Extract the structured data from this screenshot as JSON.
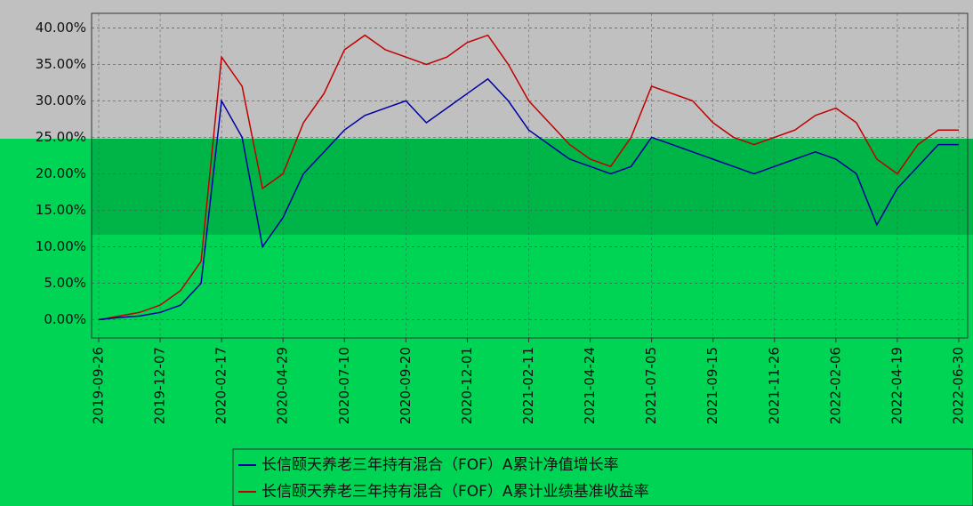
{
  "chart_data": {
    "type": "line",
    "categories": [
      "2019-09-26",
      null,
      null,
      "2019-12-07",
      null,
      null,
      "2020-02-17",
      null,
      null,
      "2020-04-29",
      null,
      null,
      "2020-07-10",
      null,
      null,
      "2020-09-20",
      null,
      null,
      "2020-12-01",
      null,
      null,
      "2021-02-11",
      null,
      null,
      "2021-04-24",
      null,
      null,
      "2021-07-05",
      null,
      null,
      "2021-09-15",
      null,
      null,
      "2021-11-26",
      null,
      null,
      "2022-02-06",
      null,
      null,
      "2022-04-19",
      null,
      null,
      "2022-06-30"
    ],
    "series": [
      {
        "name": "长信颐天养老三年持有混合（FOF）A累计净值增长率",
        "color": "#0000a0",
        "values": [
          0,
          0.3,
          0.5,
          1,
          2,
          5,
          30,
          25,
          10,
          14,
          20,
          23,
          26,
          28,
          29,
          30,
          27,
          29,
          31,
          33,
          30,
          26,
          24,
          22,
          21,
          20,
          21,
          25,
          24,
          23,
          22,
          21,
          20,
          21,
          22,
          23,
          22,
          20,
          13,
          18,
          21,
          24,
          24
        ]
      },
      {
        "name": "长信颐天养老三年持有混合（FOF）A累计业绩基准收益率",
        "color": "#c00000",
        "values": [
          0,
          0.5,
          1,
          2,
          4,
          8,
          36,
          32,
          18,
          20,
          27,
          31,
          37,
          39,
          37,
          36,
          35,
          36,
          38,
          39,
          35,
          30,
          27,
          24,
          22,
          21,
          25,
          32,
          31,
          30,
          27,
          25,
          24,
          25,
          26,
          28,
          29,
          27,
          22,
          20,
          24,
          26,
          26
        ]
      }
    ],
    "ylim": [
      -2.5,
      42
    ],
    "yticks": [
      {
        "value": 0,
        "label": "0.00%"
      },
      {
        "value": 5,
        "label": "5.00%"
      },
      {
        "value": 10,
        "label": "10.00%"
      },
      {
        "value": 15,
        "label": "15.00%"
      },
      {
        "value": 20,
        "label": "20.00%"
      },
      {
        "value": 25,
        "label": "25.00%"
      },
      {
        "value": 30,
        "label": "30.00%"
      },
      {
        "value": 35,
        "label": "35.00%"
      },
      {
        "value": 40,
        "label": "40.00%"
      }
    ],
    "grid": true
  }
}
